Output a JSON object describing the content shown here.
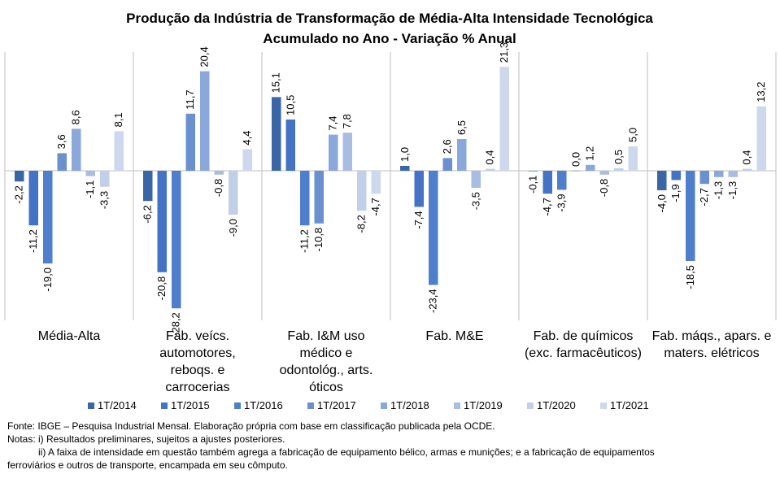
{
  "chart_data": {
    "type": "bar",
    "title": "Produção da Indústria de Transformação de Média-Alta Intensidade Tecnológica",
    "subtitle": "Acumulado no Ano - Variação % Anual",
    "categories": [
      [
        "Média-Alta"
      ],
      [
        "Fab. veícs.",
        "automotores,",
        "reboqs. e",
        "carrocerias"
      ],
      [
        "Fab. I&M uso",
        "médico e",
        "odontológ., arts.",
        "óticos"
      ],
      [
        "Fab. M&E"
      ],
      [
        "Fab. de químicos",
        "(exc. farmacêuticos)"
      ],
      [
        "Fab. máqs., apars. e",
        "maters. elétricos"
      ]
    ],
    "series": [
      {
        "name": "1T/2014",
        "color": "#3a66a5",
        "values": [
          -2.2,
          -6.2,
          15.1,
          1.0,
          -0.1,
          -4.0
        ]
      },
      {
        "name": "1T/2015",
        "color": "#4472c4",
        "values": [
          -11.2,
          -20.8,
          10.5,
          -7.4,
          -4.7,
          -1.9
        ]
      },
      {
        "name": "1T/2016",
        "color": "#4e7ecc",
        "values": [
          -19.0,
          -28.2,
          -11.2,
          -23.4,
          -3.9,
          -18.5
        ]
      },
      {
        "name": "1T/2017",
        "color": "#6a90d0",
        "values": [
          3.6,
          11.7,
          -10.8,
          2.6,
          0.0,
          -2.7
        ]
      },
      {
        "name": "1T/2018",
        "color": "#8aa8da",
        "values": [
          8.6,
          20.4,
          7.4,
          6.5,
          1.2,
          -1.3
        ]
      },
      {
        "name": "1T/2019",
        "color": "#a9bde2",
        "values": [
          -1.1,
          -0.8,
          7.8,
          -3.5,
          -0.8,
          -1.3
        ]
      },
      {
        "name": "1T/2020",
        "color": "#c2cfe8",
        "values": [
          -3.3,
          -9.0,
          -8.2,
          0.4,
          0.5,
          0.4
        ]
      },
      {
        "name": "1T/2021",
        "color": "#cdd8ee",
        "values": [
          8.1,
          4.4,
          -4.7,
          21.3,
          5.0,
          13.2
        ]
      }
    ],
    "ylim": [
      -30,
      24
    ],
    "grid": false,
    "legend_position": "bottom",
    "value_labels": "rotated"
  },
  "notes": {
    "source": "Fonte: IBGE – Pesquisa Industrial Mensal. Elaboração própria com base em classificação publicada pela OCDE.",
    "note1": "Notas: i) Resultados preliminares, sujeitos a ajustes posteriores.",
    "note2a": "ii) A faixa de intensidade em questão também agrega a fabricação de equipamento bélico, armas e munições; e a fabricação de equipamentos",
    "note2b": "ferroviários e outros de transporte, encampada em seu cômputo."
  }
}
